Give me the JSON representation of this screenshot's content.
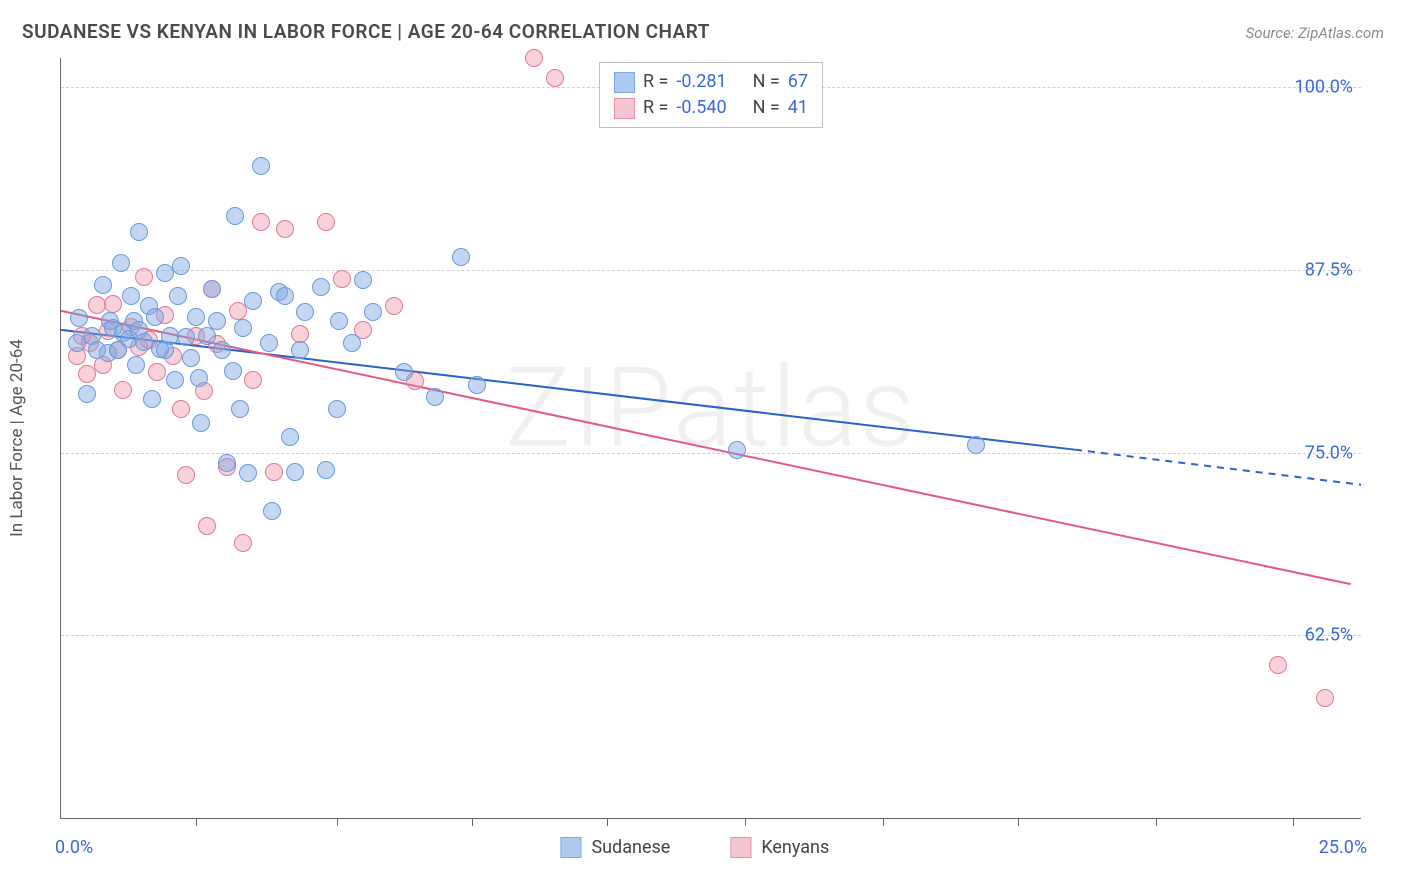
{
  "header": {
    "title": "SUDANESE VS KENYAN IN LABOR FORCE | AGE 20-64 CORRELATION CHART",
    "source": "Source: ZipAtlas.com"
  },
  "watermark": "ZIPatlas",
  "chart": {
    "type": "scatter",
    "y_axis_title": "In Labor Force | Age 20-64",
    "background_color": "#ffffff",
    "grid_color": "#d0d0d0",
    "axis_color": "#666666",
    "xlim": [
      0,
      25
    ],
    "ylim": [
      50,
      102
    ],
    "y_gridlines": [
      62.5,
      75.0,
      87.5,
      100.0
    ],
    "y_tick_labels": [
      "62.5%",
      "75.0%",
      "87.5%",
      "100.0%"
    ],
    "x_grid_positions": [
      2.6,
      5.3,
      7.9,
      10.5,
      13.15,
      15.8,
      18.4,
      21.05,
      23.7
    ],
    "x_axis_labels": {
      "left": "0.0%",
      "right": "25.0%"
    },
    "point_radius": 9,
    "point_border_width": 1.5,
    "series": {
      "sudanese": {
        "label": "Sudanese",
        "fill_color": "rgba(122,167,228,0.45)",
        "border_color": "#6a9ad8",
        "swatch_fill": "#aecbef",
        "swatch_border": "#7aa8e0",
        "R": "-0.281",
        "N": "67",
        "regression": {
          "x1": 0.0,
          "y1": 83.4,
          "x2_solid": 19.5,
          "y2_solid": 75.2,
          "x2_dash": 25.0,
          "y2_dash": 72.8,
          "color": "#2a62c9",
          "width": 2
        },
        "points": [
          [
            0.3,
            82.5
          ],
          [
            0.35,
            84.2
          ],
          [
            0.5,
            79.0
          ],
          [
            0.6,
            83.0
          ],
          [
            0.7,
            82.0
          ],
          [
            0.8,
            86.5
          ],
          [
            0.9,
            81.8
          ],
          [
            0.95,
            84.0
          ],
          [
            1.0,
            83.5
          ],
          [
            1.1,
            82.0
          ],
          [
            1.15,
            88.0
          ],
          [
            1.2,
            83.2
          ],
          [
            1.3,
            82.8
          ],
          [
            1.35,
            85.7
          ],
          [
            1.4,
            84.0
          ],
          [
            1.45,
            81.0
          ],
          [
            1.5,
            90.1
          ],
          [
            1.5,
            83.4
          ],
          [
            1.6,
            82.6
          ],
          [
            1.7,
            85.0
          ],
          [
            1.75,
            78.7
          ],
          [
            1.8,
            84.3
          ],
          [
            1.9,
            82.1
          ],
          [
            2.0,
            87.3
          ],
          [
            2.0,
            82.0
          ],
          [
            2.1,
            83.0
          ],
          [
            2.2,
            80.0
          ],
          [
            2.25,
            85.7
          ],
          [
            2.3,
            87.8
          ],
          [
            2.4,
            82.9
          ],
          [
            2.5,
            81.5
          ],
          [
            2.6,
            84.3
          ],
          [
            2.65,
            80.1
          ],
          [
            2.7,
            77.0
          ],
          [
            2.8,
            83.0
          ],
          [
            2.9,
            86.2
          ],
          [
            3.0,
            84.0
          ],
          [
            3.1,
            82.0
          ],
          [
            3.2,
            74.3
          ],
          [
            3.3,
            80.6
          ],
          [
            3.35,
            91.2
          ],
          [
            3.45,
            78.0
          ],
          [
            3.5,
            83.5
          ],
          [
            3.6,
            73.6
          ],
          [
            3.7,
            85.4
          ],
          [
            3.85,
            94.6
          ],
          [
            4.0,
            82.5
          ],
          [
            4.05,
            71.0
          ],
          [
            4.2,
            86.0
          ],
          [
            4.3,
            85.7
          ],
          [
            4.4,
            76.1
          ],
          [
            4.5,
            73.7
          ],
          [
            4.6,
            82.0
          ],
          [
            4.7,
            84.6
          ],
          [
            5.0,
            86.3
          ],
          [
            5.1,
            73.8
          ],
          [
            5.3,
            78.0
          ],
          [
            5.35,
            84.0
          ],
          [
            5.6,
            82.5
          ],
          [
            5.8,
            86.8
          ],
          [
            6.0,
            84.6
          ],
          [
            6.6,
            80.5
          ],
          [
            7.2,
            78.8
          ],
          [
            7.7,
            88.4
          ],
          [
            8.0,
            79.6
          ],
          [
            13.0,
            75.2
          ],
          [
            17.6,
            75.5
          ]
        ]
      },
      "kenyans": {
        "label": "Kenyans",
        "fill_color": "rgba(238,140,165,0.40)",
        "border_color": "#e17a96",
        "swatch_fill": "#f4c6d1",
        "swatch_border": "#e890a8",
        "R": "-0.540",
        "N": "41",
        "regression": {
          "x1": 0.0,
          "y1": 84.7,
          "x2_solid": 24.8,
          "y2_solid": 66.0,
          "color": "#e35a80",
          "width": 2
        },
        "points": [
          [
            0.3,
            81.6
          ],
          [
            0.4,
            83.0
          ],
          [
            0.5,
            80.4
          ],
          [
            0.55,
            82.5
          ],
          [
            0.7,
            85.1
          ],
          [
            0.8,
            81.0
          ],
          [
            0.9,
            83.3
          ],
          [
            1.0,
            85.2
          ],
          [
            1.1,
            82.0
          ],
          [
            1.2,
            79.3
          ],
          [
            1.35,
            83.6
          ],
          [
            1.5,
            82.2
          ],
          [
            1.6,
            87.0
          ],
          [
            1.7,
            82.7
          ],
          [
            1.85,
            80.5
          ],
          [
            2.0,
            84.4
          ],
          [
            2.15,
            81.6
          ],
          [
            2.3,
            78.0
          ],
          [
            2.4,
            73.5
          ],
          [
            2.6,
            83.0
          ],
          [
            2.75,
            79.2
          ],
          [
            2.8,
            70.0
          ],
          [
            2.9,
            86.2
          ],
          [
            3.0,
            82.4
          ],
          [
            3.2,
            74.0
          ],
          [
            3.4,
            84.7
          ],
          [
            3.5,
            68.8
          ],
          [
            3.7,
            80.0
          ],
          [
            3.85,
            90.8
          ],
          [
            4.1,
            73.7
          ],
          [
            4.3,
            90.3
          ],
          [
            4.6,
            83.1
          ],
          [
            5.1,
            90.8
          ],
          [
            5.4,
            86.9
          ],
          [
            5.8,
            83.4
          ],
          [
            6.4,
            85.0
          ],
          [
            6.8,
            79.9
          ],
          [
            9.1,
            102.0
          ],
          [
            9.5,
            100.6
          ],
          [
            23.4,
            60.5
          ],
          [
            24.3,
            58.2
          ]
        ]
      }
    },
    "legend_bottom_order": [
      "sudanese",
      "kenyans"
    ]
  }
}
